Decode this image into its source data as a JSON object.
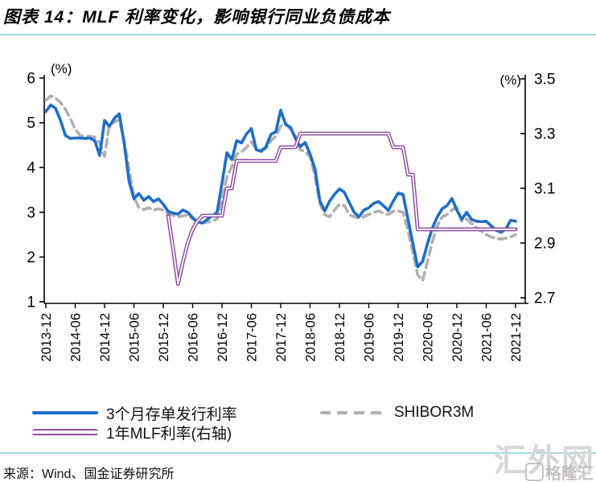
{
  "header": {
    "title": "图表 14：MLF 利率变化，影响银行同业负债成本"
  },
  "source": "来源：Wind、国金证券研究所",
  "watermark": {
    "text": "汇外网",
    "logo_text": "格隆汇"
  },
  "chart_data": {
    "type": "line",
    "title": "MLF 利率变化，影响银行同业负债成本",
    "start_month": "2013-12",
    "end_month": "2021-12",
    "months_count": 97,
    "x_tick_labels": [
      "2013-12",
      "2014-06",
      "2014-12",
      "2015-06",
      "2015-12",
      "2016-06",
      "2016-12",
      "2017-06",
      "2017-12",
      "2018-06",
      "2018-12",
      "2019-06",
      "2019-12",
      "2020-06",
      "2020-12",
      "2021-06",
      "2021-12"
    ],
    "left_axis": {
      "label": "(%)",
      "ticks": [
        6,
        5,
        4,
        3,
        2,
        1
      ],
      "range": [
        1,
        6
      ]
    },
    "right_axis": {
      "label": "(%)",
      "ticks": [
        3.5,
        3.3,
        3.1,
        2.9,
        2.7
      ],
      "range": [
        2.7,
        3.5
      ]
    },
    "grid": false,
    "legend_position": "bottom",
    "series": [
      {
        "name": "3个月存单发行利率",
        "axis": "left",
        "color": "#1e6ec8",
        "style": "solid",
        "values": [
          5.25,
          5.4,
          5.32,
          5.05,
          4.72,
          4.65,
          4.66,
          4.66,
          4.65,
          4.66,
          4.6,
          4.27,
          5.05,
          4.92,
          5.1,
          5.2,
          4.55,
          3.7,
          3.3,
          3.42,
          3.27,
          3.35,
          3.24,
          3.3,
          3.18,
          3.02,
          2.98,
          2.96,
          3.05,
          3.0,
          2.88,
          2.78,
          2.76,
          2.84,
          2.92,
          3.0,
          3.65,
          4.33,
          4.18,
          4.6,
          4.55,
          4.75,
          4.87,
          4.4,
          4.36,
          4.47,
          4.74,
          4.8,
          5.28,
          4.96,
          4.9,
          4.65,
          4.47,
          4.56,
          4.3,
          3.97,
          3.25,
          3.03,
          3.25,
          3.4,
          3.52,
          3.45,
          3.22,
          3.0,
          2.9,
          3.05,
          3.1,
          3.2,
          3.24,
          3.15,
          3.04,
          3.25,
          3.43,
          3.4,
          2.85,
          2.3,
          1.78,
          1.9,
          2.3,
          2.65,
          2.9,
          3.08,
          3.15,
          3.31,
          3.05,
          2.84,
          3.0,
          2.84,
          2.8,
          2.79,
          2.8,
          2.7,
          2.6,
          2.55,
          2.62,
          2.82,
          2.8
        ]
      },
      {
        "name": "SHIBOR3M",
        "axis": "left",
        "color": "#b1b0b1",
        "style": "dashed",
        "values": [
          5.5,
          5.6,
          5.55,
          5.45,
          5.3,
          5.1,
          4.85,
          4.72,
          4.7,
          4.7,
          4.68,
          4.55,
          4.25,
          4.96,
          5.02,
          5.07,
          4.6,
          3.97,
          3.35,
          3.1,
          3.06,
          3.1,
          3.05,
          3.08,
          3.05,
          2.98,
          2.93,
          2.9,
          2.92,
          2.94,
          2.85,
          2.78,
          2.76,
          2.78,
          2.8,
          2.85,
          3.25,
          3.79,
          4.02,
          4.3,
          4.35,
          4.45,
          4.57,
          4.42,
          4.39,
          4.42,
          4.6,
          4.7,
          4.92,
          5.0,
          4.85,
          4.7,
          4.4,
          4.35,
          4.25,
          3.8,
          3.2,
          2.95,
          2.9,
          3.05,
          3.18,
          3.15,
          2.95,
          2.9,
          2.87,
          2.9,
          2.95,
          3.0,
          3.03,
          2.98,
          2.95,
          3.02,
          3.03,
          3.0,
          2.6,
          2.1,
          1.6,
          1.47,
          1.9,
          2.35,
          2.7,
          2.9,
          2.95,
          3.05,
          3.1,
          2.8,
          2.85,
          2.75,
          2.65,
          2.58,
          2.5,
          2.45,
          2.42,
          2.4,
          2.42,
          2.45,
          2.5
        ]
      },
      {
        "name": "1年MLF利率(右轴)",
        "axis": "right",
        "color": "#8e4da8",
        "style": "double",
        "values": [
          null,
          null,
          null,
          null,
          null,
          null,
          null,
          null,
          null,
          null,
          null,
          null,
          null,
          null,
          null,
          null,
          null,
          null,
          null,
          null,
          null,
          null,
          null,
          null,
          null,
          3.0,
          2.88,
          2.75,
          2.83,
          2.9,
          2.95,
          2.98,
          3.0,
          3.0,
          3.0,
          3.0,
          3.0,
          3.1,
          3.1,
          3.2,
          3.2,
          3.2,
          3.2,
          3.2,
          3.2,
          3.2,
          3.2,
          3.2,
          3.25,
          3.25,
          3.25,
          3.25,
          3.3,
          3.3,
          3.3,
          3.3,
          3.3,
          3.3,
          3.3,
          3.3,
          3.3,
          3.3,
          3.3,
          3.3,
          3.3,
          3.3,
          3.3,
          3.3,
          3.3,
          3.3,
          3.3,
          3.25,
          3.25,
          3.25,
          3.15,
          3.15,
          2.95,
          2.95,
          2.95,
          2.95,
          2.95,
          2.95,
          2.95,
          2.95,
          2.95,
          2.95,
          2.95,
          2.95,
          2.95,
          2.95,
          2.95,
          2.95,
          2.95,
          2.95,
          2.95,
          2.95,
          2.95
        ]
      }
    ]
  }
}
